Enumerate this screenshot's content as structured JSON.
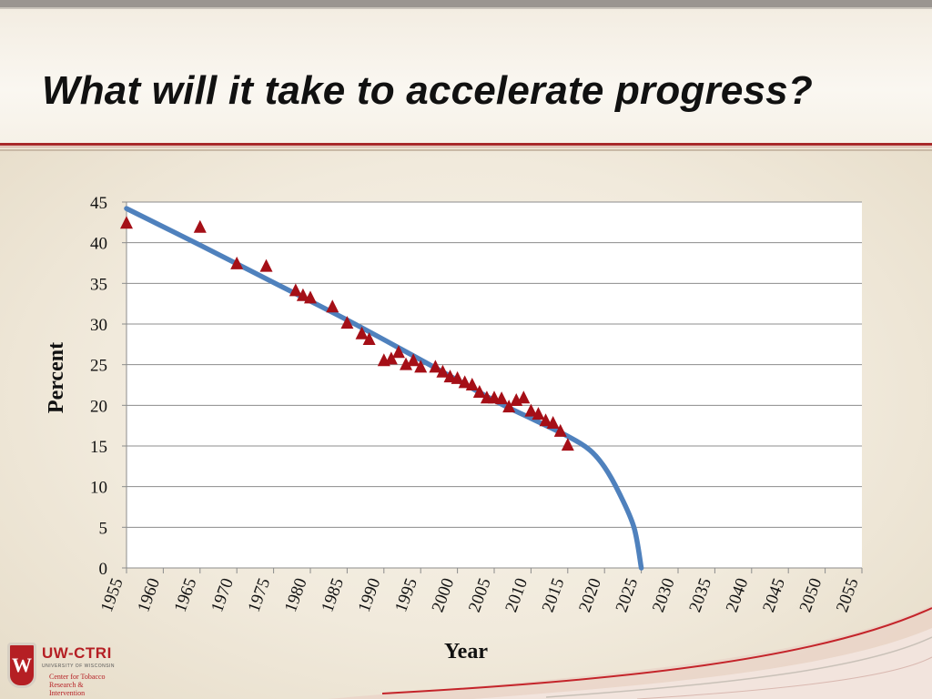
{
  "slide": {
    "title": "What will it take to accelerate progress?"
  },
  "logo": {
    "shield": "W",
    "brand": "UW-CTRI",
    "university": "UNIVERSITY OF WISCONSIN",
    "center_line1": "Center for Tobacco",
    "center_line2": "Research & Intervention"
  },
  "colors": {
    "accent_red": "#a8282a",
    "marker": "#a50f17",
    "trend": "#4f81bd"
  },
  "chart_data": {
    "type": "scatter",
    "title": "",
    "xlabel": "Year",
    "ylabel": "Percent",
    "xlim": [
      1955,
      2055
    ],
    "ylim": [
      0,
      45
    ],
    "x_ticks": [
      1955,
      1960,
      1965,
      1970,
      1975,
      1980,
      1985,
      1990,
      1995,
      2000,
      2005,
      2010,
      2015,
      2020,
      2025,
      2030,
      2035,
      2040,
      2045,
      2050,
      2055
    ],
    "y_ticks": [
      0,
      5,
      10,
      15,
      20,
      25,
      30,
      35,
      40,
      45
    ],
    "grid": "horizontal",
    "series": [
      {
        "marker": "triangle",
        "color": "#a50f17",
        "points": [
          [
            1955,
            42.4
          ],
          [
            1965,
            41.9
          ],
          [
            1970,
            37.4
          ],
          [
            1974,
            37.1
          ],
          [
            1978,
            34.1
          ],
          [
            1979,
            33.5
          ],
          [
            1980,
            33.2
          ],
          [
            1983,
            32.1
          ],
          [
            1985,
            30.1
          ],
          [
            1987,
            28.8
          ],
          [
            1988,
            28.1
          ],
          [
            1990,
            25.5
          ],
          [
            1991,
            25.7
          ],
          [
            1992,
            26.5
          ],
          [
            1993,
            25.0
          ],
          [
            1994,
            25.5
          ],
          [
            1995,
            24.7
          ],
          [
            1997,
            24.7
          ],
          [
            1998,
            24.1
          ],
          [
            1999,
            23.5
          ],
          [
            2000,
            23.3
          ],
          [
            2001,
            22.8
          ],
          [
            2002,
            22.5
          ],
          [
            2003,
            21.6
          ],
          [
            2004,
            20.9
          ],
          [
            2005,
            20.9
          ],
          [
            2006,
            20.8
          ],
          [
            2007,
            19.8
          ],
          [
            2008,
            20.6
          ],
          [
            2009,
            20.9
          ],
          [
            2010,
            19.3
          ],
          [
            2011,
            18.9
          ],
          [
            2012,
            18.1
          ],
          [
            2013,
            17.8
          ],
          [
            2014,
            16.8
          ],
          [
            2015,
            15.1
          ]
        ]
      },
      {
        "type": "line",
        "color": "#4f81bd",
        "points": [
          [
            1955,
            44.2
          ],
          [
            1965,
            39.7
          ],
          [
            1975,
            35.1
          ],
          [
            1985,
            30.5
          ],
          [
            1995,
            25.6
          ],
          [
            2005,
            20.6
          ],
          [
            2010,
            18.4
          ],
          [
            2015,
            16.2
          ],
          [
            2018,
            14.5
          ],
          [
            2020,
            12.4
          ],
          [
            2022,
            9.2
          ],
          [
            2024,
            5.0
          ],
          [
            2025,
            0
          ]
        ]
      }
    ]
  }
}
